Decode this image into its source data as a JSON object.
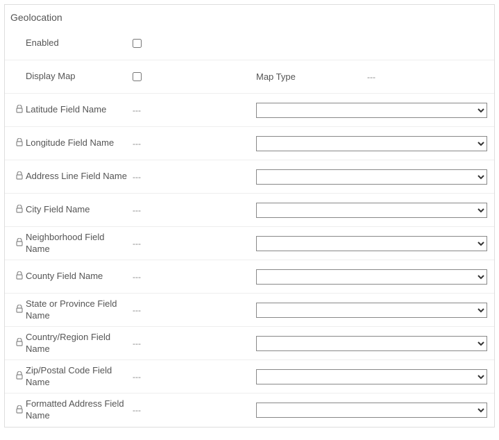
{
  "section_title": "Geolocation",
  "placeholder_dash": "---",
  "enabled": {
    "label": "Enabled",
    "checked": false
  },
  "display_map": {
    "label": "Display Map",
    "checked": false
  },
  "map_type": {
    "label": "Map Type",
    "value": "---"
  },
  "fields": [
    {
      "key": "latitude",
      "label": "Latitude Field Name",
      "value": "---"
    },
    {
      "key": "longitude",
      "label": "Longitude Field Name",
      "value": "---"
    },
    {
      "key": "address",
      "label": "Address Line Field Name",
      "value": "---"
    },
    {
      "key": "city",
      "label": "City Field Name",
      "value": "---"
    },
    {
      "key": "neighborhood",
      "label": "Neighborhood Field Name",
      "value": "---"
    },
    {
      "key": "county",
      "label": "County Field Name",
      "value": "---"
    },
    {
      "key": "state",
      "label": "State or Province Field Name",
      "value": "---"
    },
    {
      "key": "country",
      "label": "Country/Region Field Name",
      "value": "---"
    },
    {
      "key": "zip",
      "label": "Zip/Postal Code Field Name",
      "value": "---"
    },
    {
      "key": "formatted",
      "label": "Formatted Address Field Name",
      "value": "---"
    }
  ]
}
